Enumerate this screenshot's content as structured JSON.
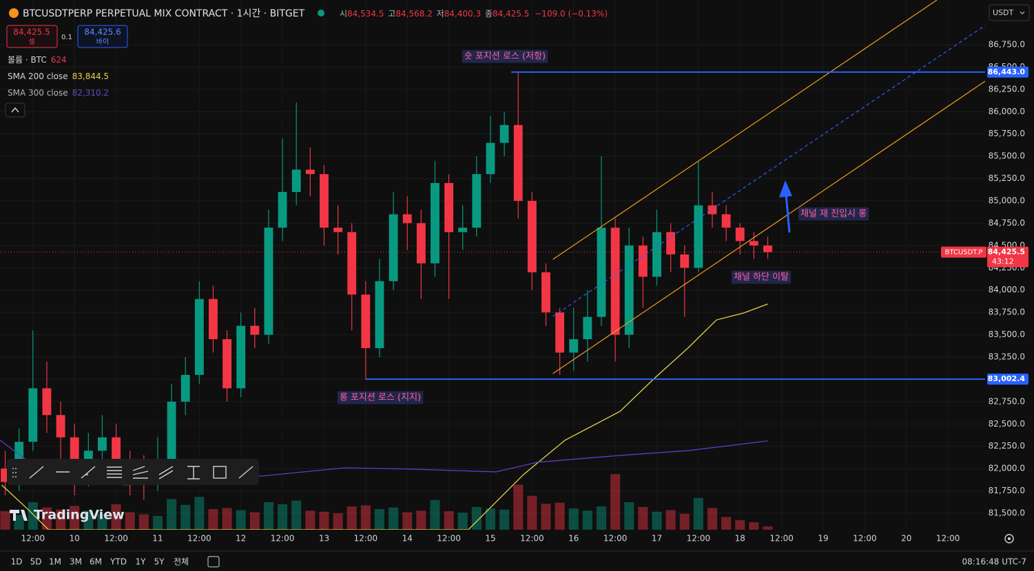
{
  "header": {
    "symbol": "BTCUSDTPERP PERPETUAL MIX CONTRACT · 1시간 · BITGET",
    "ohlc": [
      {
        "key": "시",
        "value": "84,534.5"
      },
      {
        "key": "고",
        "value": "84,568.2"
      },
      {
        "key": "저",
        "value": "84,400.3"
      },
      {
        "key": "종",
        "value": "84,425.5"
      }
    ],
    "change": "−109.0 (−0.13%)",
    "currency": "USDT"
  },
  "trade": {
    "sell_price": "84,425.5",
    "sell_label": "셀",
    "quantity": "0.1",
    "buy_price": "84,425.6",
    "buy_label": "바이"
  },
  "legend": [
    {
      "name": "볼륨 · BTC",
      "value": "624"
    },
    {
      "name": "SMA 200 close",
      "value": "83,844.5"
    },
    {
      "name": "SMA 300 close",
      "value": "82,310.2"
    }
  ],
  "brand": "TradingView",
  "footer": {
    "ranges": [
      "1D",
      "5D",
      "1M",
      "3M",
      "6M",
      "YTD",
      "1Y",
      "5Y",
      "전체"
    ],
    "clock": "08:16:48 UTC-7"
  },
  "chart_data": {
    "type": "candlestick",
    "grid": true,
    "up_color": "#089981",
    "down_color": "#f23645",
    "xlim": [
      2.5,
      286.7
    ],
    "xticks": [
      {
        "value": 12,
        "label": "12:00"
      },
      {
        "value": 24,
        "label": "10"
      },
      {
        "value": 36,
        "label": "12:00"
      },
      {
        "value": 48,
        "label": "11"
      },
      {
        "value": 60,
        "label": "12:00"
      },
      {
        "value": 72,
        "label": "12"
      },
      {
        "value": 84,
        "label": "12:00"
      },
      {
        "value": 96,
        "label": "13"
      },
      {
        "value": 108,
        "label": "12:00"
      },
      {
        "value": 120,
        "label": "14"
      },
      {
        "value": 132,
        "label": "12:00"
      },
      {
        "value": 144,
        "label": "15"
      },
      {
        "value": 156,
        "label": "12:00"
      },
      {
        "value": 168,
        "label": "16"
      },
      {
        "value": 180,
        "label": "12:00"
      },
      {
        "value": 192,
        "label": "17"
      },
      {
        "value": 204,
        "label": "12:00"
      },
      {
        "value": 216,
        "label": "18"
      },
      {
        "value": 228,
        "label": "12:00"
      },
      {
        "value": 240,
        "label": "19"
      },
      {
        "value": 252,
        "label": "12:00"
      },
      {
        "value": 264,
        "label": "20"
      },
      {
        "value": 276,
        "label": "12:00"
      }
    ],
    "ylim": [
      81315,
      87251
    ],
    "yticks": [
      {
        "value": 81500,
        "label": "81,500.0"
      },
      {
        "value": 81750,
        "label": "81,750.0"
      },
      {
        "value": 82000,
        "label": "82,000.0"
      },
      {
        "value": 82250,
        "label": "82,250.0"
      },
      {
        "value": 82500,
        "label": "82,500.0"
      },
      {
        "value": 82750,
        "label": "82,750.0"
      },
      {
        "value": 83000,
        "label": "83,000.0"
      },
      {
        "value": 83250,
        "label": "83,250.0"
      },
      {
        "value": 83500,
        "label": "83,500.0"
      },
      {
        "value": 83750,
        "label": "83,750.0"
      },
      {
        "value": 84000,
        "label": "84,000.0"
      },
      {
        "value": 84250,
        "label": "84,250.0"
      },
      {
        "value": 84500,
        "label": "84,500.0"
      },
      {
        "value": 84750,
        "label": "84,750.0"
      },
      {
        "value": 85000,
        "label": "85,000.0"
      },
      {
        "value": 85250,
        "label": "85,250.0"
      },
      {
        "value": 85500,
        "label": "85,500.0"
      },
      {
        "value": 85750,
        "label": "85,750.0"
      },
      {
        "value": 86000,
        "label": "86,000.0"
      },
      {
        "value": 86250,
        "label": "86,250.0"
      },
      {
        "value": 86500,
        "label": "86,500.0"
      },
      {
        "value": 86750,
        "label": "86,750.0"
      }
    ],
    "candles": {
      "x": [
        4,
        8,
        12,
        16,
        20,
        24,
        28,
        32,
        36,
        40,
        44,
        48,
        52,
        56,
        60,
        64,
        68,
        72,
        76,
        80,
        84,
        88,
        92,
        96,
        100,
        104,
        108,
        112,
        116,
        120,
        124,
        128,
        132,
        136,
        140,
        144,
        148,
        152,
        156,
        160,
        164,
        168,
        172,
        176,
        180,
        184,
        188,
        192,
        196,
        200,
        204,
        208,
        212,
        216,
        220,
        224
      ],
      "open": [
        82000,
        81850,
        82300,
        82900,
        82600,
        82350,
        82050,
        82200,
        82350,
        82050,
        81950,
        81900,
        82050,
        82750,
        83050,
        83900,
        83450,
        82900,
        83600,
        83500,
        84700,
        85100,
        85350,
        85300,
        84700,
        84650,
        83950,
        83350,
        84100,
        84850,
        84750,
        84300,
        85200,
        84650,
        84700,
        85300,
        85650,
        85850,
        85000,
        84200,
        83750,
        83300,
        83450,
        83700,
        84700,
        83500,
        84500,
        84150,
        84650,
        84400,
        84250,
        84950,
        84850,
        84700,
        84550,
        84500
      ],
      "high": [
        82200,
        82450,
        83550,
        83200,
        82750,
        82500,
        82400,
        82600,
        82500,
        82200,
        82150,
        82350,
        82950,
        83250,
        84100,
        84050,
        83550,
        83750,
        83800,
        84900,
        85700,
        86100,
        85600,
        85400,
        84950,
        84750,
        84100,
        84350,
        85100,
        85050,
        84900,
        85450,
        85300,
        84950,
        85500,
        85950,
        86000,
        86443,
        85100,
        84300,
        83800,
        83800,
        84000,
        85500,
        84800,
        84700,
        84600,
        84900,
        84750,
        84500,
        85450,
        85100,
        84950,
        84750,
        84650,
        84600
      ],
      "low": [
        81700,
        81750,
        82200,
        82400,
        82100,
        81700,
        81800,
        82000,
        81850,
        81700,
        81650,
        81750,
        81950,
        82600,
        82950,
        83300,
        82750,
        82800,
        83350,
        83400,
        84550,
        84950,
        85050,
        84500,
        84400,
        83550,
        83002.4,
        83250,
        84000,
        84450,
        83900,
        84150,
        83900,
        84450,
        84600,
        85200,
        85500,
        84800,
        84000,
        83600,
        83050,
        83100,
        83200,
        83600,
        83200,
        83350,
        83800,
        84050,
        84200,
        83700,
        84200,
        84700,
        84550,
        84400,
        84350,
        84350
      ],
      "close": [
        81850,
        82300,
        82900,
        82600,
        82350,
        82050,
        82200,
        82350,
        82050,
        81950,
        81900,
        82050,
        82750,
        83050,
        83900,
        83450,
        82900,
        83600,
        83500,
        84700,
        85100,
        85350,
        85300,
        84700,
        84650,
        83950,
        83350,
        84100,
        84850,
        84750,
        84300,
        85200,
        84650,
        84700,
        85300,
        85650,
        85850,
        85000,
        84200,
        83750,
        83300,
        83450,
        83700,
        84700,
        83500,
        84500,
        84150,
        84650,
        84400,
        84250,
        84950,
        84850,
        84700,
        84550,
        84500,
        84425.5
      ]
    },
    "volume": {
      "ylim": [
        0,
        100000
      ],
      "values": [
        3500,
        2800,
        5200,
        4200,
        3800,
        4500,
        3600,
        3000,
        4800,
        3300,
        2900,
        2600,
        5800,
        4700,
        6200,
        3900,
        4100,
        3700,
        3300,
        5200,
        4800,
        5500,
        3600,
        3400,
        3100,
        4400,
        4600,
        3900,
        4200,
        3300,
        3600,
        5600,
        3500,
        3200,
        4300,
        4000,
        3800,
        8500,
        6400,
        4900,
        5100,
        4000,
        3600,
        4400,
        10500,
        5200,
        4300,
        3400,
        3700,
        3000,
        6000,
        4100,
        2400,
        1800,
        1400,
        624
      ]
    },
    "series": [
      {
        "name": "SMA 200 close",
        "color": "#e8d34a",
        "x": [
          3,
          10.5,
          16.5,
          137.6,
          153.5,
          165.5,
          181.4,
          191.3,
          201.2,
          209.2,
          217.1,
          224
        ],
        "values": [
          81816,
          81546,
          81315,
          81315,
          81932,
          82318,
          82642,
          83012,
          83359,
          83666,
          83744,
          83844.5
        ]
      },
      {
        "name": "SMA 300 close",
        "color": "#5b3fc4",
        "x": [
          2.5,
          10.5,
          22.4,
          38.3,
          62.1,
          82,
          101.9,
          121.8,
          145.6,
          157.5,
          181.4,
          201.2,
          224
        ],
        "values": [
          82318,
          82087,
          81932,
          81816,
          81855,
          81932,
          82009,
          81994,
          81963,
          82071,
          82148,
          82202,
          82310.2
        ]
      }
    ],
    "levels": [
      {
        "value": 86443.0,
        "label": "86,443.0",
        "x_start": 150,
        "color": "#2962ff"
      },
      {
        "value": 83002.4,
        "label": "83,002.4",
        "x_start": 108,
        "color": "#2962ff"
      }
    ],
    "channel": {
      "color": "#f59b1f",
      "mid_color": "#2962ff",
      "upper": {
        "x": [
          162,
          272.8
        ],
        "y": [
          84345,
          87251
        ]
      },
      "lower": {
        "x": [
          162,
          286.7
        ],
        "y": [
          83065,
          86341
        ]
      },
      "middle": {
        "x": [
          162,
          286.7
        ],
        "y": [
          83705,
          86966
        ]
      }
    },
    "last_price": {
      "value": 84425.5,
      "label": "84,425.5"
    },
    "countdown": "43:12",
    "symbol_tag": "BTCUSDT.P",
    "annotations": [
      "숏 포지션 로스 (저항)",
      "롱 포지션 로스 (지지)",
      "채널 재 진입시 롱",
      "채널 하단 이탈"
    ]
  }
}
